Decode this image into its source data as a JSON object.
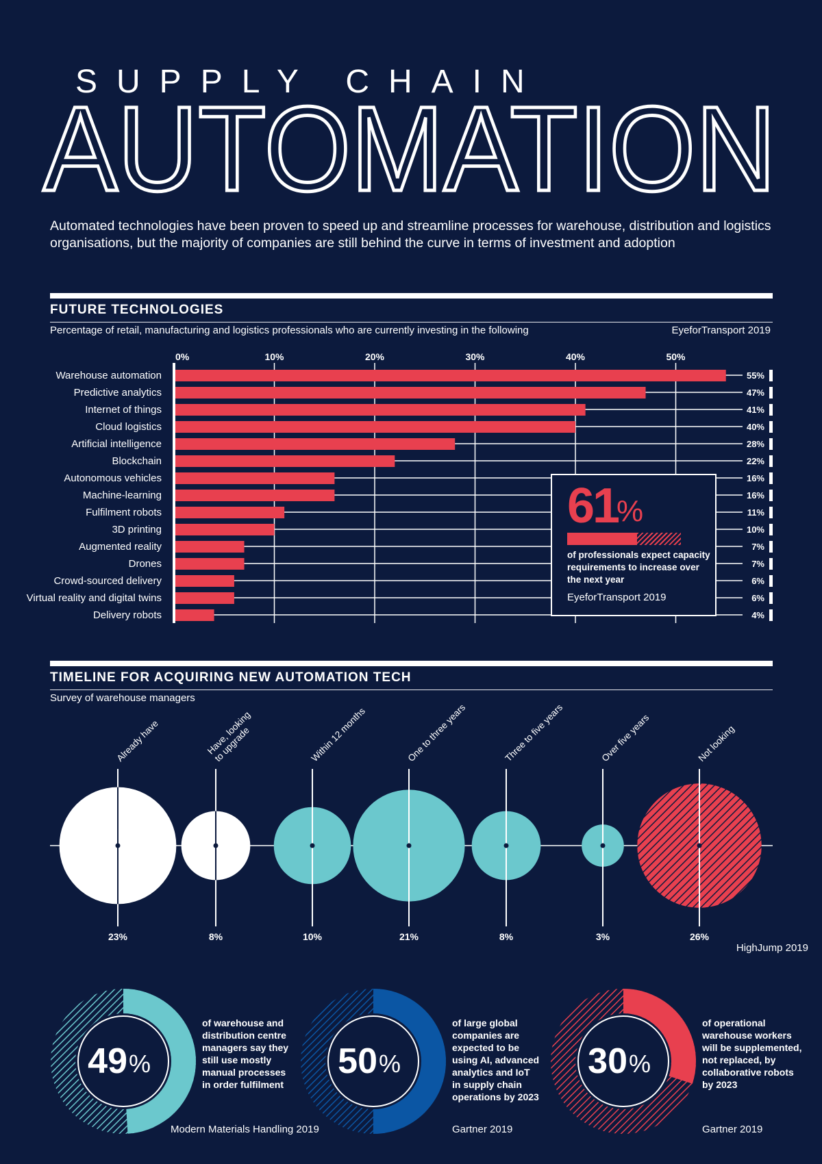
{
  "header": {
    "kicker": "SUPPLY CHAIN",
    "title": "AUTOMATION",
    "intro": "Automated technologies have been proven to speed up and streamline processes for warehouse, distribution and logistics organisations, but the majority of companies are still behind the curve in terms of investment and adoption"
  },
  "future": {
    "title": "FUTURE TECHNOLOGIES",
    "subtitle": "Percentage of retail, manufacturing and logistics professionals who are currently investing in the following",
    "source": "EyeforTransport 2019"
  },
  "callout": {
    "value": "61",
    "unit": "%",
    "text": "of professionals expect capacity requirements to increase over the next year",
    "source": "EyeforTransport 2019",
    "fraction": 0.61
  },
  "timeline": {
    "title": "TIMELINE FOR ACQUIRING NEW AUTOMATION TECH",
    "subtitle": "Survey of warehouse managers",
    "source": "HighJump 2019"
  },
  "stats": [
    {
      "value": "49",
      "unit": "%",
      "fraction": 0.49,
      "text": [
        "of warehouse and",
        "distribution centre",
        "managers say they",
        "still use mostly",
        "manual processes",
        "in order fulfilment"
      ],
      "source": "Modern Materials Handling 2019",
      "color": "#6bc8cd"
    },
    {
      "value": "50",
      "unit": "%",
      "fraction": 0.5,
      "text": [
        "of large global",
        "companies are",
        "expected to be",
        "using AI, advanced",
        "analytics and IoT",
        "in supply chain",
        "operations by 2023"
      ],
      "source": "Gartner 2019",
      "color": "#0b56a4"
    },
    {
      "value": "30",
      "unit": "%",
      "fraction": 0.3,
      "text": [
        "of operational",
        "warehouse workers",
        "will be supplemented,",
        "not replaced, by",
        "collaborative robots",
        "by 2023"
      ],
      "source": "Gartner 2019",
      "color": "#e8404f"
    }
  ],
  "colors": {
    "background": "#0c1a3d",
    "red": "#e8404f",
    "teal": "#6bc8cd",
    "blue": "#0b56a4",
    "white": "#ffffff"
  },
  "chart_data": [
    {
      "type": "bar",
      "orientation": "horizontal",
      "categories": [
        "Warehouse automation",
        "Predictive analytics",
        "Internet of things",
        "Cloud logistics",
        "Artificial intelligence",
        "Blockchain",
        "Autonomous vehicles",
        "Machine-learning",
        "Fulfilment robots",
        "3D printing",
        "Augmented reality",
        "Drones",
        "Crowd-sourced delivery",
        "Virtual reality and digital twins",
        "Delivery robots"
      ],
      "values": [
        55,
        47,
        41,
        40,
        28,
        22,
        16,
        16,
        11,
        10,
        7,
        7,
        6,
        6,
        4
      ],
      "value_labels": [
        "55%",
        "47%",
        "41%",
        "40%",
        "28%",
        "22%",
        "16%",
        "16%",
        "11%",
        "10%",
        "7%",
        "7%",
        "6%",
        "6%",
        "4%"
      ],
      "ticks": [
        0,
        10,
        20,
        30,
        40,
        50
      ],
      "tick_labels": [
        "0%",
        "10%",
        "20%",
        "30%",
        "40%",
        "50%"
      ],
      "xlim": [
        0,
        55
      ],
      "grid": true,
      "color": "#e8404f"
    },
    {
      "type": "bubble",
      "categories": [
        "Already have",
        "Have, looking to upgrade",
        "Within 12 months",
        "One to three years",
        "Three to five years",
        "Over five years",
        "Not looking"
      ],
      "label_lines": [
        [
          "Already have"
        ],
        [
          "Have, looking",
          "to upgrade"
        ],
        [
          "Within 12 months"
        ],
        [
          "One to three years"
        ],
        [
          "Three to five years"
        ],
        [
          "Over five years"
        ],
        [
          "Not looking"
        ]
      ],
      "values": [
        23,
        8,
        10,
        21,
        8,
        3,
        26
      ],
      "value_labels": [
        "23%",
        "8%",
        "10%",
        "21%",
        "8%",
        "3%",
        "26%"
      ],
      "colors": [
        "#ffffff",
        "#ffffff",
        "#6bc8cd",
        "#6bc8cd",
        "#6bc8cd",
        "#6bc8cd",
        "#e8404f"
      ],
      "hatched": [
        false,
        false,
        false,
        false,
        false,
        false,
        true
      ]
    }
  ]
}
